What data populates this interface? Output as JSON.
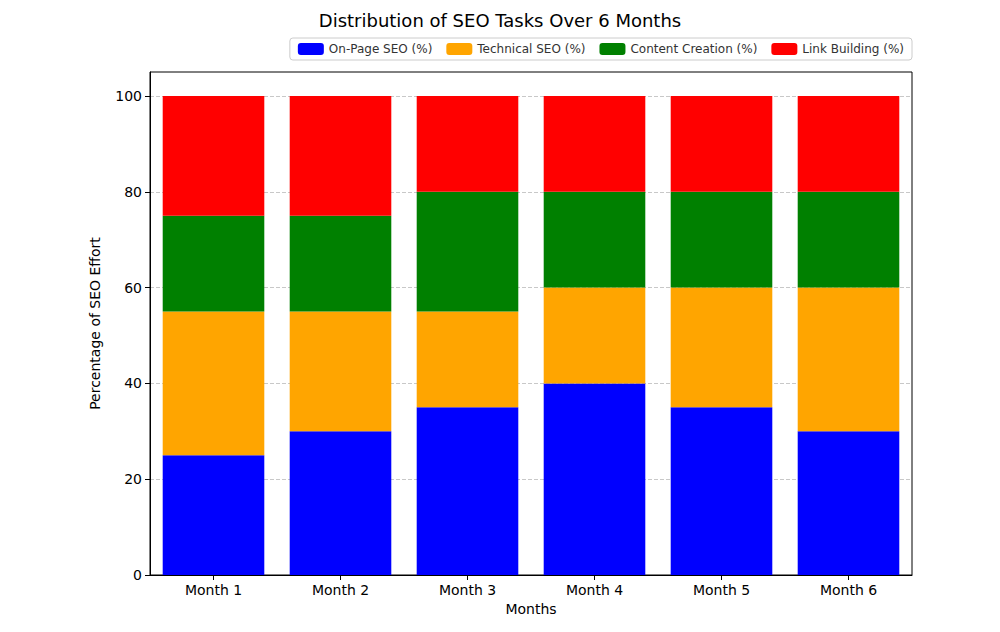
{
  "chart_data": {
    "type": "bar",
    "title": "Distribution of SEO Tasks Over 6 Months",
    "x_label": "Months",
    "y_label": "Percentage of SEO Effort",
    "categories": [
      "Month 1",
      "Month 2",
      "Month 3",
      "Month 4",
      "Month 5",
      "Month 6"
    ],
    "series": [
      {
        "name": "On-Page SEO (%)",
        "color": "#0000ff",
        "values": [
          25,
          30,
          35,
          40,
          35,
          30
        ]
      },
      {
        "name": "Technical SEO (%)",
        "color": "#ffa500",
        "values": [
          30,
          25,
          20,
          20,
          25,
          30
        ]
      },
      {
        "name": "Content Creation (%)",
        "color": "#008000",
        "values": [
          20,
          20,
          25,
          20,
          20,
          20
        ]
      },
      {
        "name": "Link Building (%)",
        "color": "#ff0000",
        "values": [
          25,
          25,
          20,
          20,
          20,
          20
        ]
      }
    ],
    "stacked": true,
    "ylim": [
      0,
      105
    ],
    "yticks": [
      0,
      20,
      40,
      60,
      80,
      100
    ],
    "grid": true,
    "legend": "upper right"
  }
}
